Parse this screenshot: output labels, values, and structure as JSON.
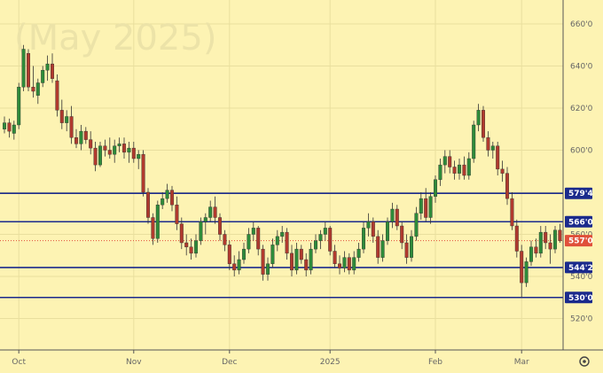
{
  "watermark": "(May 2025)",
  "colors": {
    "background": "#fdf3b3",
    "up": "#2e8b3a",
    "down": "#b03a2e",
    "level": "#1a2a8c",
    "current": "#e0503a",
    "grid": "#e9df9e"
  },
  "chart_data": {
    "type": "candlestick",
    "title": "",
    "ylim": [
      508,
      668
    ],
    "y_ticks": [
      "660'0",
      "640'0",
      "620'0",
      "600'0",
      "580'0",
      "560'0",
      "540'0",
      "520'0"
    ],
    "y_tick_values": [
      660,
      640,
      620,
      600,
      580,
      560,
      540,
      520
    ],
    "x_ticks": [
      "Oct",
      "Nov",
      "Dec",
      "2025",
      "Feb",
      "Mar"
    ],
    "x_tick_bars": [
      3,
      27,
      47,
      68,
      90,
      108
    ],
    "grid": true,
    "levels": [
      {
        "label": "579'4",
        "value": 579.5
      },
      {
        "label": "566'0",
        "value": 566
      },
      {
        "label": "544'2",
        "value": 544.25
      },
      {
        "label": "530'0",
        "value": 530
      }
    ],
    "current_price": {
      "label": "557'0",
      "value": 557
    },
    "bars": [
      {
        "o": 610,
        "h": 616,
        "l": 608,
        "c": 613
      },
      {
        "o": 613,
        "h": 615,
        "l": 606,
        "c": 609
      },
      {
        "o": 608,
        "h": 614,
        "l": 605,
        "c": 612
      },
      {
        "o": 612,
        "h": 632,
        "l": 610,
        "c": 630
      },
      {
        "o": 630,
        "h": 650,
        "l": 628,
        "c": 648
      },
      {
        "o": 646,
        "h": 648,
        "l": 628,
        "c": 630
      },
      {
        "o": 630,
        "h": 640,
        "l": 625,
        "c": 628
      },
      {
        "o": 626,
        "h": 634,
        "l": 622,
        "c": 632
      },
      {
        "o": 632,
        "h": 640,
        "l": 630,
        "c": 638
      },
      {
        "o": 638,
        "h": 645,
        "l": 633,
        "c": 641
      },
      {
        "o": 641,
        "h": 646,
        "l": 632,
        "c": 634
      },
      {
        "o": 633,
        "h": 636,
        "l": 616,
        "c": 619
      },
      {
        "o": 619,
        "h": 624,
        "l": 610,
        "c": 613
      },
      {
        "o": 613,
        "h": 619,
        "l": 609,
        "c": 616
      },
      {
        "o": 616,
        "h": 621,
        "l": 603,
        "c": 606
      },
      {
        "o": 606,
        "h": 610,
        "l": 601,
        "c": 603
      },
      {
        "o": 603,
        "h": 612,
        "l": 600,
        "c": 609
      },
      {
        "o": 609,
        "h": 611,
        "l": 603,
        "c": 605
      },
      {
        "o": 605,
        "h": 609,
        "l": 598,
        "c": 601
      },
      {
        "o": 601,
        "h": 604,
        "l": 590,
        "c": 593
      },
      {
        "o": 593,
        "h": 604,
        "l": 592,
        "c": 602
      },
      {
        "o": 602,
        "h": 605,
        "l": 597,
        "c": 600
      },
      {
        "o": 600,
        "h": 606,
        "l": 596,
        "c": 598
      },
      {
        "o": 598,
        "h": 605,
        "l": 594,
        "c": 602
      },
      {
        "o": 602,
        "h": 606,
        "l": 599,
        "c": 603
      },
      {
        "o": 603,
        "h": 606,
        "l": 596,
        "c": 599
      },
      {
        "o": 599,
        "h": 604,
        "l": 594,
        "c": 601
      },
      {
        "o": 601,
        "h": 604,
        "l": 594,
        "c": 596
      },
      {
        "o": 596,
        "h": 600,
        "l": 591,
        "c": 598
      },
      {
        "o": 598,
        "h": 600,
        "l": 578,
        "c": 580
      },
      {
        "o": 580,
        "h": 582,
        "l": 565,
        "c": 568
      },
      {
        "o": 568,
        "h": 570,
        "l": 555,
        "c": 558
      },
      {
        "o": 558,
        "h": 576,
        "l": 556,
        "c": 574
      },
      {
        "o": 574,
        "h": 580,
        "l": 572,
        "c": 577
      },
      {
        "o": 577,
        "h": 584,
        "l": 575,
        "c": 581
      },
      {
        "o": 581,
        "h": 583,
        "l": 571,
        "c": 574
      },
      {
        "o": 574,
        "h": 578,
        "l": 562,
        "c": 565
      },
      {
        "o": 565,
        "h": 568,
        "l": 553,
        "c": 556
      },
      {
        "o": 556,
        "h": 560,
        "l": 550,
        "c": 554
      },
      {
        "o": 554,
        "h": 558,
        "l": 548,
        "c": 551
      },
      {
        "o": 551,
        "h": 560,
        "l": 549,
        "c": 557
      },
      {
        "o": 557,
        "h": 568,
        "l": 555,
        "c": 566
      },
      {
        "o": 566,
        "h": 570,
        "l": 560,
        "c": 568
      },
      {
        "o": 568,
        "h": 576,
        "l": 566,
        "c": 573
      },
      {
        "o": 573,
        "h": 578,
        "l": 565,
        "c": 568
      },
      {
        "o": 568,
        "h": 570,
        "l": 557,
        "c": 560
      },
      {
        "o": 560,
        "h": 562,
        "l": 552,
        "c": 555
      },
      {
        "o": 555,
        "h": 557,
        "l": 543,
        "c": 546
      },
      {
        "o": 546,
        "h": 550,
        "l": 540,
        "c": 543
      },
      {
        "o": 543,
        "h": 552,
        "l": 541,
        "c": 548
      },
      {
        "o": 548,
        "h": 556,
        "l": 546,
        "c": 553
      },
      {
        "o": 553,
        "h": 563,
        "l": 551,
        "c": 560
      },
      {
        "o": 560,
        "h": 566,
        "l": 557,
        "c": 563
      },
      {
        "o": 563,
        "h": 564,
        "l": 550,
        "c": 553
      },
      {
        "o": 553,
        "h": 555,
        "l": 538,
        "c": 541
      },
      {
        "o": 541,
        "h": 549,
        "l": 538,
        "c": 546
      },
      {
        "o": 546,
        "h": 558,
        "l": 544,
        "c": 555
      },
      {
        "o": 555,
        "h": 562,
        "l": 552,
        "c": 559
      },
      {
        "o": 559,
        "h": 564,
        "l": 556,
        "c": 561
      },
      {
        "o": 561,
        "h": 563,
        "l": 548,
        "c": 551
      },
      {
        "o": 551,
        "h": 555,
        "l": 540,
        "c": 543
      },
      {
        "o": 543,
        "h": 556,
        "l": 541,
        "c": 553
      },
      {
        "o": 553,
        "h": 555,
        "l": 546,
        "c": 548
      },
      {
        "o": 548,
        "h": 551,
        "l": 540,
        "c": 543
      },
      {
        "o": 543,
        "h": 556,
        "l": 541,
        "c": 553
      },
      {
        "o": 553,
        "h": 560,
        "l": 551,
        "c": 557
      },
      {
        "o": 557,
        "h": 562,
        "l": 553,
        "c": 560
      },
      {
        "o": 560,
        "h": 566,
        "l": 557,
        "c": 563
      },
      {
        "o": 563,
        "h": 564,
        "l": 550,
        "c": 552
      },
      {
        "o": 552,
        "h": 555,
        "l": 544,
        "c": 546
      },
      {
        "o": 546,
        "h": 550,
        "l": 541,
        "c": 544
      },
      {
        "o": 544,
        "h": 552,
        "l": 542,
        "c": 549
      },
      {
        "o": 549,
        "h": 551,
        "l": 541,
        "c": 543
      },
      {
        "o": 543,
        "h": 552,
        "l": 541,
        "c": 549
      },
      {
        "o": 549,
        "h": 556,
        "l": 547,
        "c": 553
      },
      {
        "o": 553,
        "h": 566,
        "l": 551,
        "c": 563
      },
      {
        "o": 563,
        "h": 570,
        "l": 559,
        "c": 566
      },
      {
        "o": 566,
        "h": 568,
        "l": 556,
        "c": 559
      },
      {
        "o": 559,
        "h": 562,
        "l": 546,
        "c": 549
      },
      {
        "o": 549,
        "h": 560,
        "l": 547,
        "c": 557
      },
      {
        "o": 557,
        "h": 568,
        "l": 555,
        "c": 566
      },
      {
        "o": 566,
        "h": 575,
        "l": 563,
        "c": 572
      },
      {
        "o": 572,
        "h": 574,
        "l": 562,
        "c": 564
      },
      {
        "o": 564,
        "h": 566,
        "l": 553,
        "c": 556
      },
      {
        "o": 556,
        "h": 560,
        "l": 546,
        "c": 549
      },
      {
        "o": 549,
        "h": 562,
        "l": 547,
        "c": 559
      },
      {
        "o": 559,
        "h": 573,
        "l": 557,
        "c": 570
      },
      {
        "o": 570,
        "h": 580,
        "l": 567,
        "c": 577
      },
      {
        "o": 577,
        "h": 582,
        "l": 566,
        "c": 568
      },
      {
        "o": 568,
        "h": 580,
        "l": 565,
        "c": 578
      },
      {
        "o": 578,
        "h": 588,
        "l": 575,
        "c": 586
      },
      {
        "o": 586,
        "h": 596,
        "l": 583,
        "c": 593
      },
      {
        "o": 593,
        "h": 600,
        "l": 589,
        "c": 597
      },
      {
        "o": 597,
        "h": 600,
        "l": 589,
        "c": 592
      },
      {
        "o": 592,
        "h": 595,
        "l": 586,
        "c": 589
      },
      {
        "o": 589,
        "h": 596,
        "l": 586,
        "c": 593
      },
      {
        "o": 593,
        "h": 597,
        "l": 586,
        "c": 588
      },
      {
        "o": 588,
        "h": 599,
        "l": 586,
        "c": 596
      },
      {
        "o": 596,
        "h": 614,
        "l": 594,
        "c": 612
      },
      {
        "o": 612,
        "h": 622,
        "l": 609,
        "c": 619
      },
      {
        "o": 619,
        "h": 621,
        "l": 604,
        "c": 606
      },
      {
        "o": 606,
        "h": 609,
        "l": 597,
        "c": 600
      },
      {
        "o": 600,
        "h": 604,
        "l": 596,
        "c": 602
      },
      {
        "o": 602,
        "h": 604,
        "l": 588,
        "c": 591
      },
      {
        "o": 591,
        "h": 595,
        "l": 585,
        "c": 589
      },
      {
        "o": 589,
        "h": 592,
        "l": 574,
        "c": 577
      },
      {
        "o": 577,
        "h": 580,
        "l": 562,
        "c": 564
      },
      {
        "o": 564,
        "h": 567,
        "l": 549,
        "c": 552
      },
      {
        "o": 552,
        "h": 555,
        "l": 530,
        "c": 537
      },
      {
        "o": 537,
        "h": 549,
        "l": 535,
        "c": 547
      },
      {
        "o": 547,
        "h": 557,
        "l": 545,
        "c": 554
      },
      {
        "o": 554,
        "h": 558,
        "l": 549,
        "c": 551
      },
      {
        "o": 551,
        "h": 564,
        "l": 549,
        "c": 561
      },
      {
        "o": 561,
        "h": 564,
        "l": 553,
        "c": 556
      },
      {
        "o": 556,
        "h": 560,
        "l": 546,
        "c": 553
      },
      {
        "o": 553,
        "h": 564,
        "l": 551,
        "c": 562
      },
      {
        "o": 562,
        "h": 565,
        "l": 556,
        "c": 557
      }
    ]
  }
}
